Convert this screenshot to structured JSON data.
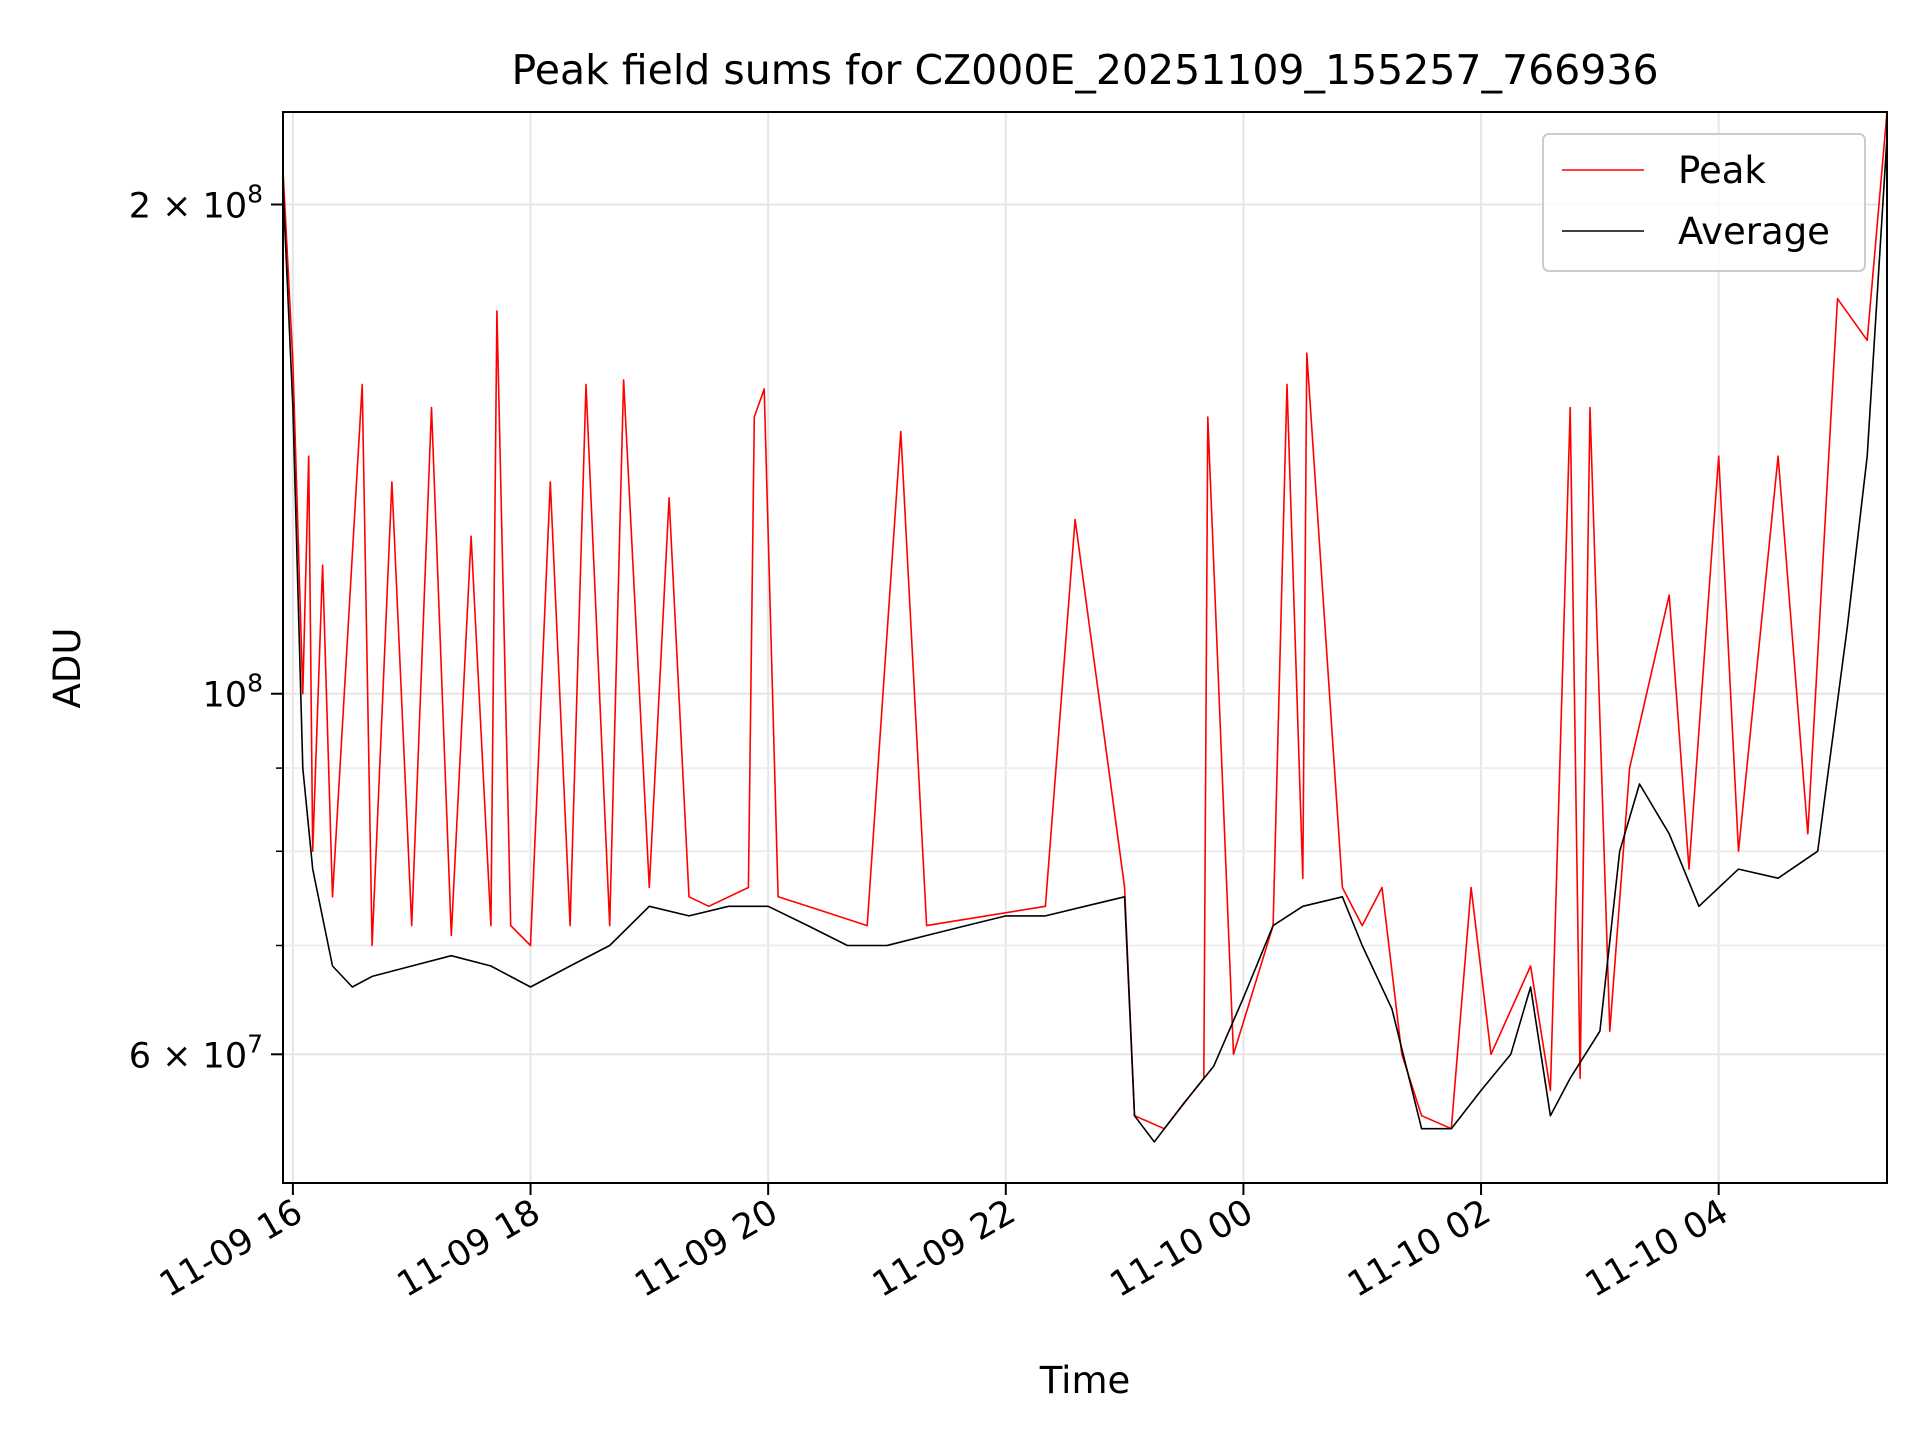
{
  "chart_data": {
    "type": "line",
    "title": "Peak field sums for CZ000E_20251109_155257_766936",
    "xlabel": "Time",
    "ylabel": "ADU",
    "y_scale": "log",
    "ylim": [
      50000000,
      228000000
    ],
    "xlim": [
      "2025-11-09T15:55",
      "2025-11-10T05:25"
    ],
    "grid": true,
    "legend_position": "top-right",
    "x_tick_labels": [
      "11-09 16",
      "11-09 18",
      "11-09 20",
      "11-09 22",
      "11-10 00",
      "11-10 02",
      "11-10 04"
    ],
    "x_ticks": [
      "2025-11-09T16:00",
      "2025-11-09T18:00",
      "2025-11-09T20:00",
      "2025-11-09T22:00",
      "2025-11-10T00:00",
      "2025-11-10T02:00",
      "2025-11-10T04:00"
    ],
    "y_major_ticks": [
      {
        "value": 60000000,
        "mantissa": "6",
        "exponent": "7"
      },
      {
        "value": 100000000,
        "mantissa": "",
        "exponent": "8"
      },
      {
        "value": 200000000,
        "mantissa": "2",
        "exponent": "8"
      }
    ],
    "y_minor_ticks": [
      70000000,
      80000000,
      90000000
    ],
    "series": [
      {
        "name": "Peak",
        "color": "#ff0000",
        "points": [
          [
            "2025-11-09T15:55",
            210000000
          ],
          [
            "2025-11-09T16:00",
            160000000
          ],
          [
            "2025-11-09T16:05",
            100000000
          ],
          [
            "2025-11-09T16:08",
            140000000
          ],
          [
            "2025-11-09T16:10",
            80000000
          ],
          [
            "2025-11-09T16:15",
            120000000
          ],
          [
            "2025-11-09T16:20",
            75000000
          ],
          [
            "2025-11-09T16:35",
            155000000
          ],
          [
            "2025-11-09T16:40",
            70000000
          ],
          [
            "2025-11-09T16:50",
            135000000
          ],
          [
            "2025-11-09T17:00",
            72000000
          ],
          [
            "2025-11-09T17:10",
            150000000
          ],
          [
            "2025-11-09T17:20",
            71000000
          ],
          [
            "2025-11-09T17:30",
            125000000
          ],
          [
            "2025-11-09T17:40",
            72000000
          ],
          [
            "2025-11-09T17:43",
            172000000
          ],
          [
            "2025-11-09T17:50",
            72000000
          ],
          [
            "2025-11-09T18:00",
            70000000
          ],
          [
            "2025-11-09T18:10",
            135000000
          ],
          [
            "2025-11-09T18:20",
            72000000
          ],
          [
            "2025-11-09T18:28",
            155000000
          ],
          [
            "2025-11-09T18:40",
            72000000
          ],
          [
            "2025-11-09T18:47",
            156000000
          ],
          [
            "2025-11-09T19:00",
            76000000
          ],
          [
            "2025-11-09T19:10",
            132000000
          ],
          [
            "2025-11-09T19:20",
            75000000
          ],
          [
            "2025-11-09T19:30",
            74000000
          ],
          [
            "2025-11-09T19:50",
            76000000
          ],
          [
            "2025-11-09T19:53",
            148000000
          ],
          [
            "2025-11-09T19:58",
            154000000
          ],
          [
            "2025-11-09T20:05",
            75000000
          ],
          [
            "2025-11-09T20:20",
            74000000
          ],
          [
            "2025-11-09T20:50",
            72000000
          ],
          [
            "2025-11-09T21:07",
            145000000
          ],
          [
            "2025-11-09T21:20",
            72000000
          ],
          [
            "2025-11-09T21:50",
            73000000
          ],
          [
            "2025-11-09T22:20",
            74000000
          ],
          [
            "2025-11-09T22:35",
            128000000
          ],
          [
            "2025-11-09T23:00",
            76000000
          ],
          [
            "2025-11-09T23:05",
            55000000
          ],
          [
            "2025-11-09T23:20",
            54000000
          ],
          [
            "2025-11-09T23:40",
            58000000
          ],
          [
            "2025-11-09T23:42",
            148000000
          ],
          [
            "2025-11-09T23:55",
            60000000
          ],
          [
            "2025-11-10T00:15",
            72000000
          ],
          [
            "2025-11-10T00:22",
            155000000
          ],
          [
            "2025-11-10T00:30",
            77000000
          ],
          [
            "2025-11-10T00:32",
            162000000
          ],
          [
            "2025-11-10T00:50",
            76000000
          ],
          [
            "2025-11-10T01:00",
            72000000
          ],
          [
            "2025-11-10T01:10",
            76000000
          ],
          [
            "2025-11-10T01:20",
            60000000
          ],
          [
            "2025-11-10T01:30",
            55000000
          ],
          [
            "2025-11-10T01:45",
            54000000
          ],
          [
            "2025-11-10T01:55",
            76000000
          ],
          [
            "2025-11-10T02:05",
            60000000
          ],
          [
            "2025-11-10T02:25",
            68000000
          ],
          [
            "2025-11-10T02:35",
            57000000
          ],
          [
            "2025-11-10T02:45",
            150000000
          ],
          [
            "2025-11-10T02:50",
            58000000
          ],
          [
            "2025-11-10T02:55",
            150000000
          ],
          [
            "2025-11-10T03:05",
            62000000
          ],
          [
            "2025-11-10T03:15",
            90000000
          ],
          [
            "2025-11-10T03:35",
            115000000
          ],
          [
            "2025-11-10T03:45",
            78000000
          ],
          [
            "2025-11-10T04:00",
            140000000
          ],
          [
            "2025-11-10T04:10",
            80000000
          ],
          [
            "2025-11-10T04:30",
            140000000
          ],
          [
            "2025-11-10T04:45",
            82000000
          ],
          [
            "2025-11-10T05:00",
            175000000
          ],
          [
            "2025-11-10T05:15",
            165000000
          ],
          [
            "2025-11-10T05:25",
            228000000
          ]
        ]
      },
      {
        "name": "Average",
        "color": "#000000",
        "points": [
          [
            "2025-11-09T15:55",
            205000000
          ],
          [
            "2025-11-09T16:00",
            150000000
          ],
          [
            "2025-11-09T16:05",
            90000000
          ],
          [
            "2025-11-09T16:10",
            78000000
          ],
          [
            "2025-11-09T16:20",
            68000000
          ],
          [
            "2025-11-09T16:30",
            66000000
          ],
          [
            "2025-11-09T16:40",
            67000000
          ],
          [
            "2025-11-09T17:00",
            68000000
          ],
          [
            "2025-11-09T17:20",
            69000000
          ],
          [
            "2025-11-09T17:40",
            68000000
          ],
          [
            "2025-11-09T18:00",
            66000000
          ],
          [
            "2025-11-09T18:20",
            68000000
          ],
          [
            "2025-11-09T18:40",
            70000000
          ],
          [
            "2025-11-09T19:00",
            74000000
          ],
          [
            "2025-11-09T19:20",
            73000000
          ],
          [
            "2025-11-09T19:40",
            74000000
          ],
          [
            "2025-11-09T20:00",
            74000000
          ],
          [
            "2025-11-09T20:20",
            72000000
          ],
          [
            "2025-11-09T20:40",
            70000000
          ],
          [
            "2025-11-09T21:00",
            70000000
          ],
          [
            "2025-11-09T21:20",
            71000000
          ],
          [
            "2025-11-09T21:40",
            72000000
          ],
          [
            "2025-11-09T22:00",
            73000000
          ],
          [
            "2025-11-09T22:20",
            73000000
          ],
          [
            "2025-11-09T22:40",
            74000000
          ],
          [
            "2025-11-09T23:00",
            75000000
          ],
          [
            "2025-11-09T23:05",
            55000000
          ],
          [
            "2025-11-09T23:15",
            53000000
          ],
          [
            "2025-11-09T23:30",
            56000000
          ],
          [
            "2025-11-09T23:45",
            59000000
          ],
          [
            "2025-11-10T00:00",
            65000000
          ],
          [
            "2025-11-10T00:15",
            72000000
          ],
          [
            "2025-11-10T00:30",
            74000000
          ],
          [
            "2025-11-10T00:50",
            75000000
          ],
          [
            "2025-11-10T01:00",
            70000000
          ],
          [
            "2025-11-10T01:15",
            64000000
          ],
          [
            "2025-11-10T01:30",
            54000000
          ],
          [
            "2025-11-10T01:45",
            54000000
          ],
          [
            "2025-11-10T02:00",
            57000000
          ],
          [
            "2025-11-10T02:15",
            60000000
          ],
          [
            "2025-11-10T02:25",
            66000000
          ],
          [
            "2025-11-10T02:35",
            55000000
          ],
          [
            "2025-11-10T02:45",
            58000000
          ],
          [
            "2025-11-10T03:00",
            62000000
          ],
          [
            "2025-11-10T03:10",
            80000000
          ],
          [
            "2025-11-10T03:20",
            88000000
          ],
          [
            "2025-11-10T03:35",
            82000000
          ],
          [
            "2025-11-10T03:50",
            74000000
          ],
          [
            "2025-11-10T04:10",
            78000000
          ],
          [
            "2025-11-10T04:30",
            77000000
          ],
          [
            "2025-11-10T04:50",
            80000000
          ],
          [
            "2025-11-10T05:05",
            110000000
          ],
          [
            "2025-11-10T05:15",
            140000000
          ],
          [
            "2025-11-10T05:25",
            220000000
          ]
        ]
      }
    ]
  }
}
